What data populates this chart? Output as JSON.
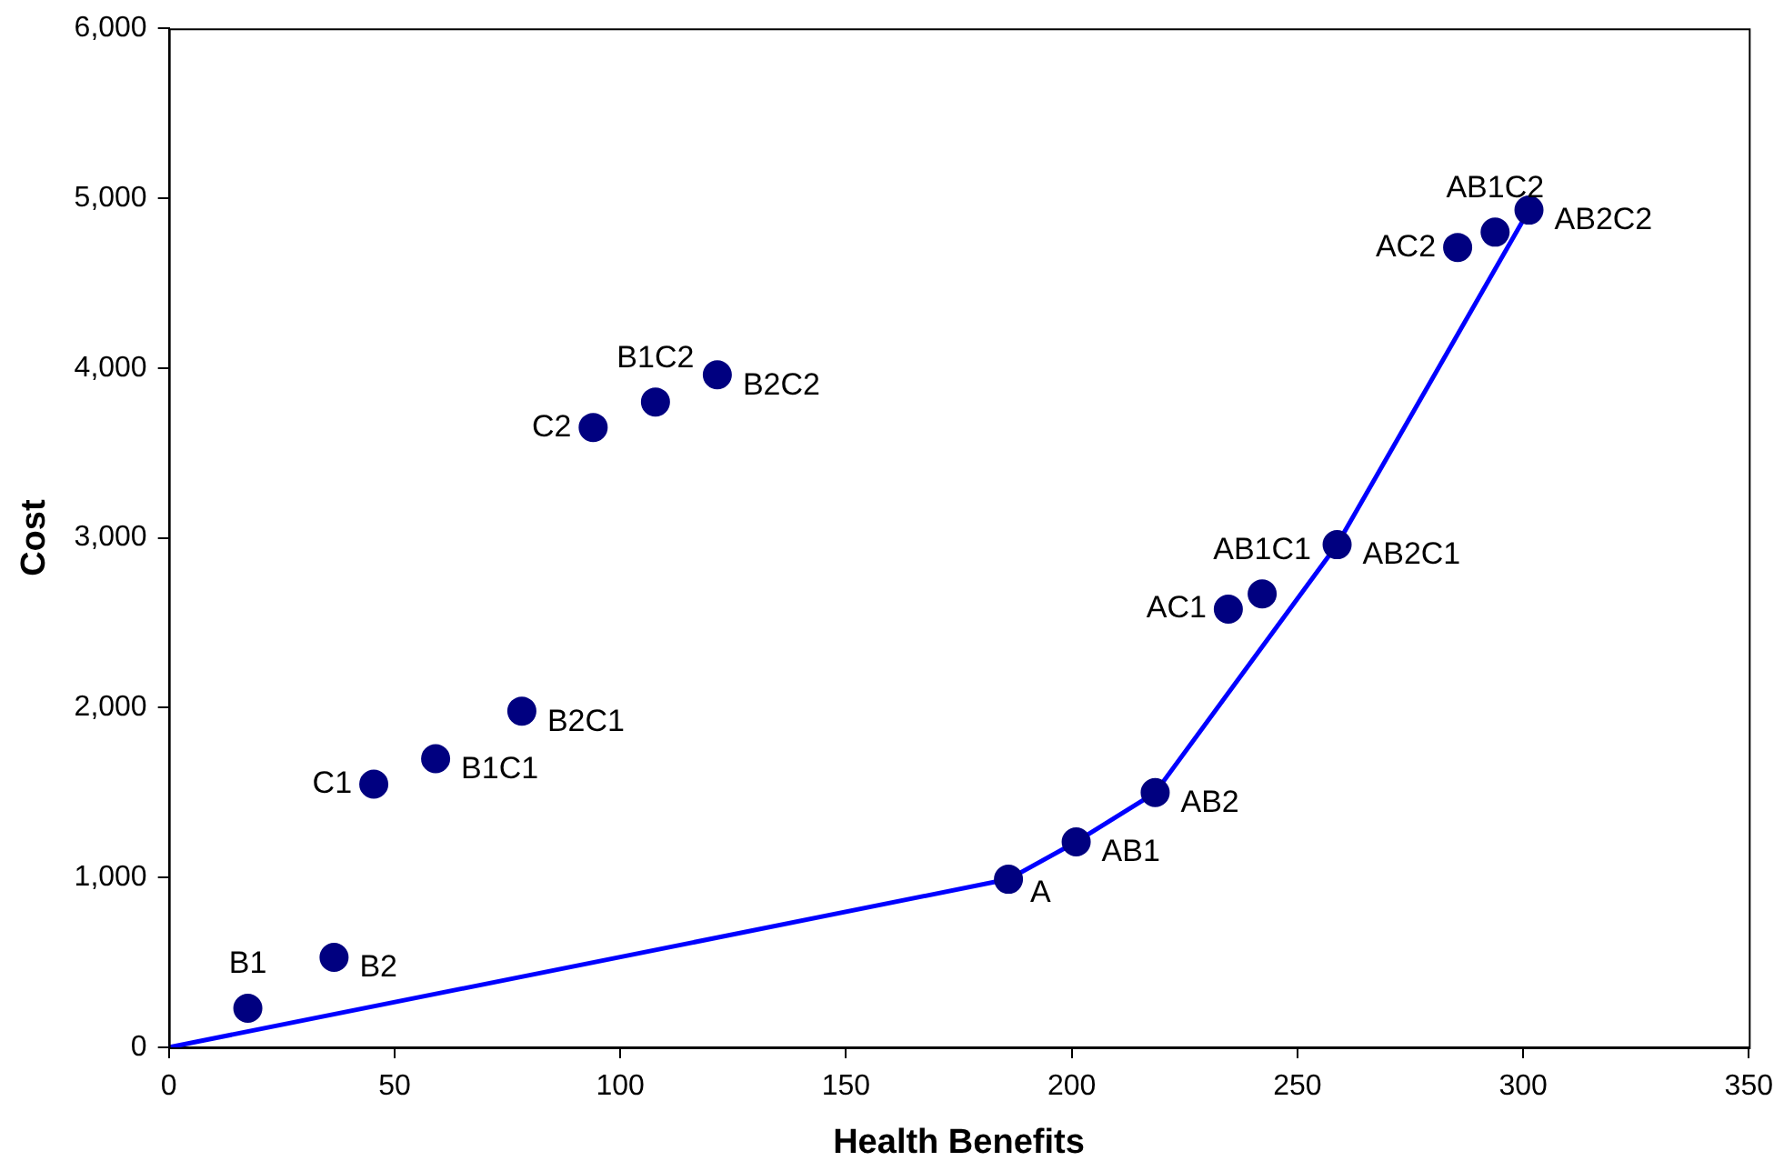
{
  "chart_data": {
    "type": "scatter",
    "xlabel": "Health Benefits",
    "ylabel": "Cost",
    "xlim": [
      0,
      350
    ],
    "xticks": [
      0,
      50,
      100,
      150,
      200,
      250,
      300,
      350
    ],
    "ylim": [
      0,
      6000
    ],
    "yticks": [
      0,
      {
        "value": 1000,
        "label": "1,000"
      },
      {
        "value": 2000,
        "label": "2,000"
      },
      {
        "value": 3000,
        "label": "3,000"
      },
      {
        "value": 4000,
        "label": "4,000"
      },
      {
        "value": 5000,
        "label": "5,000"
      },
      {
        "value": 6000,
        "label": "6,000"
      }
    ],
    "grid": false,
    "legend": false,
    "series": [
      {
        "type": "scatter",
        "marker": "circle",
        "color": "#000080",
        "x": [
          17.5,
          36.6,
          45.4,
          59.1,
          78.2,
          94,
          107.8,
          121.5,
          186,
          201,
          218.5,
          234.7,
          242.2,
          258.8,
          285.5,
          293.8,
          301.3
        ],
        "values": [
          230,
          530,
          1550,
          1700,
          1980,
          3650,
          3800,
          3960,
          990,
          1210,
          1500,
          2580,
          2670,
          2960,
          4710,
          4800,
          4930
        ]
      },
      {
        "type": "line",
        "marker": "none",
        "color": "#0000ff",
        "x": [
          0,
          186,
          201,
          218.5,
          258.8,
          301.3
        ],
        "values": [
          0,
          990,
          1210,
          1500,
          2960,
          4930
        ]
      }
    ],
    "annotations": [
      {
        "text": "B1",
        "x": 17.5,
        "y": 230
      },
      {
        "text": "B2",
        "x": 36.6,
        "y": 530
      },
      {
        "text": "C1",
        "x": 45.4,
        "y": 1550
      },
      {
        "text": "B1C1",
        "x": 59.1,
        "y": 1700
      },
      {
        "text": "B2C1",
        "x": 78.2,
        "y": 1980
      },
      {
        "text": "C2",
        "x": 94,
        "y": 3650
      },
      {
        "text": "B1C2",
        "x": 107.8,
        "y": 3800
      },
      {
        "text": "B2C2",
        "x": 121.5,
        "y": 3960
      },
      {
        "text": "A",
        "x": 186,
        "y": 990
      },
      {
        "text": "AB1",
        "x": 201,
        "y": 1210
      },
      {
        "text": "AB2",
        "x": 218.5,
        "y": 1500
      },
      {
        "text": "AC1",
        "x": 234.7,
        "y": 2580
      },
      {
        "text": "AB1C1",
        "x": 242.2,
        "y": 2670
      },
      {
        "text": "AB2C1",
        "x": 258.8,
        "y": 2960
      },
      {
        "text": "AC2",
        "x": 285.5,
        "y": 4710
      },
      {
        "text": "AB1C2",
        "x": 293.8,
        "y": 4800
      },
      {
        "text": "AB2C2",
        "x": 301.3,
        "y": 4930
      }
    ]
  }
}
